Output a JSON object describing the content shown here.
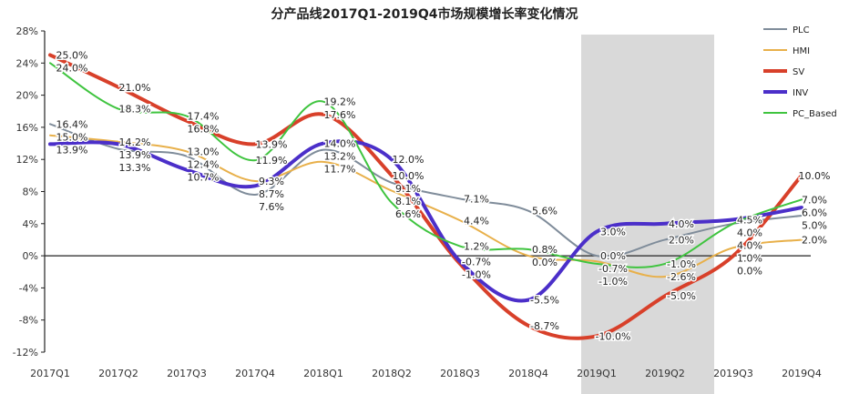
{
  "chart_data": {
    "type": "line",
    "title": "分产品线2017Q1-2019Q4市场规模增长率变化情况",
    "categories": [
      "2017Q1",
      "2017Q2",
      "2017Q3",
      "2017Q4",
      "2018Q1",
      "2018Q2",
      "2018Q3",
      "2018Q4",
      "2019Q1",
      "2019Q2",
      "2019Q3",
      "2019Q4"
    ],
    "ylim": [
      -12,
      28
    ],
    "yticks": [
      "28%",
      "24%",
      "20%",
      "16%",
      "12%",
      "8%",
      "4%",
      "0%",
      "-4%",
      "-8%",
      "-12%"
    ],
    "ytick_values": [
      28,
      24,
      20,
      16,
      12,
      8,
      4,
      0,
      -4,
      -8,
      -12
    ],
    "legend_position": "top-right",
    "highlight_range": [
      "2019Q1",
      "2019Q2"
    ],
    "highlight_color": "#d9d9d9",
    "series": [
      {
        "name": "PLC",
        "color": "#7f8c9a",
        "values": [
          16.4,
          13.3,
          12.4,
          7.6,
          13.2,
          9.1,
          7.1,
          5.6,
          0.0,
          2.0,
          4.0,
          5.0
        ]
      },
      {
        "name": "HMI",
        "color": "#e8b04a",
        "values": [
          15.0,
          14.2,
          13.0,
          9.3,
          11.7,
          8.1,
          4.4,
          0.0,
          -0.7,
          -2.6,
          1.0,
          2.0
        ]
      },
      {
        "name": "SV",
        "color": "#d8402a",
        "values": [
          25.0,
          21.0,
          16.8,
          13.9,
          17.6,
          10.0,
          -1.0,
          -8.7,
          -10.0,
          -5.0,
          0.0,
          10.0
        ]
      },
      {
        "name": "INV",
        "color": "#4b2fc9",
        "values": [
          13.9,
          13.9,
          10.7,
          8.7,
          14.0,
          12.0,
          -0.7,
          -5.5,
          3.0,
          4.0,
          4.5,
          6.0
        ]
      },
      {
        "name": "PC_Based",
        "color": "#3fc43f",
        "values": [
          24.0,
          18.3,
          17.4,
          11.9,
          19.2,
          6.6,
          1.2,
          0.8,
          -1.0,
          -1.0,
          4.0,
          7.0
        ]
      }
    ]
  }
}
